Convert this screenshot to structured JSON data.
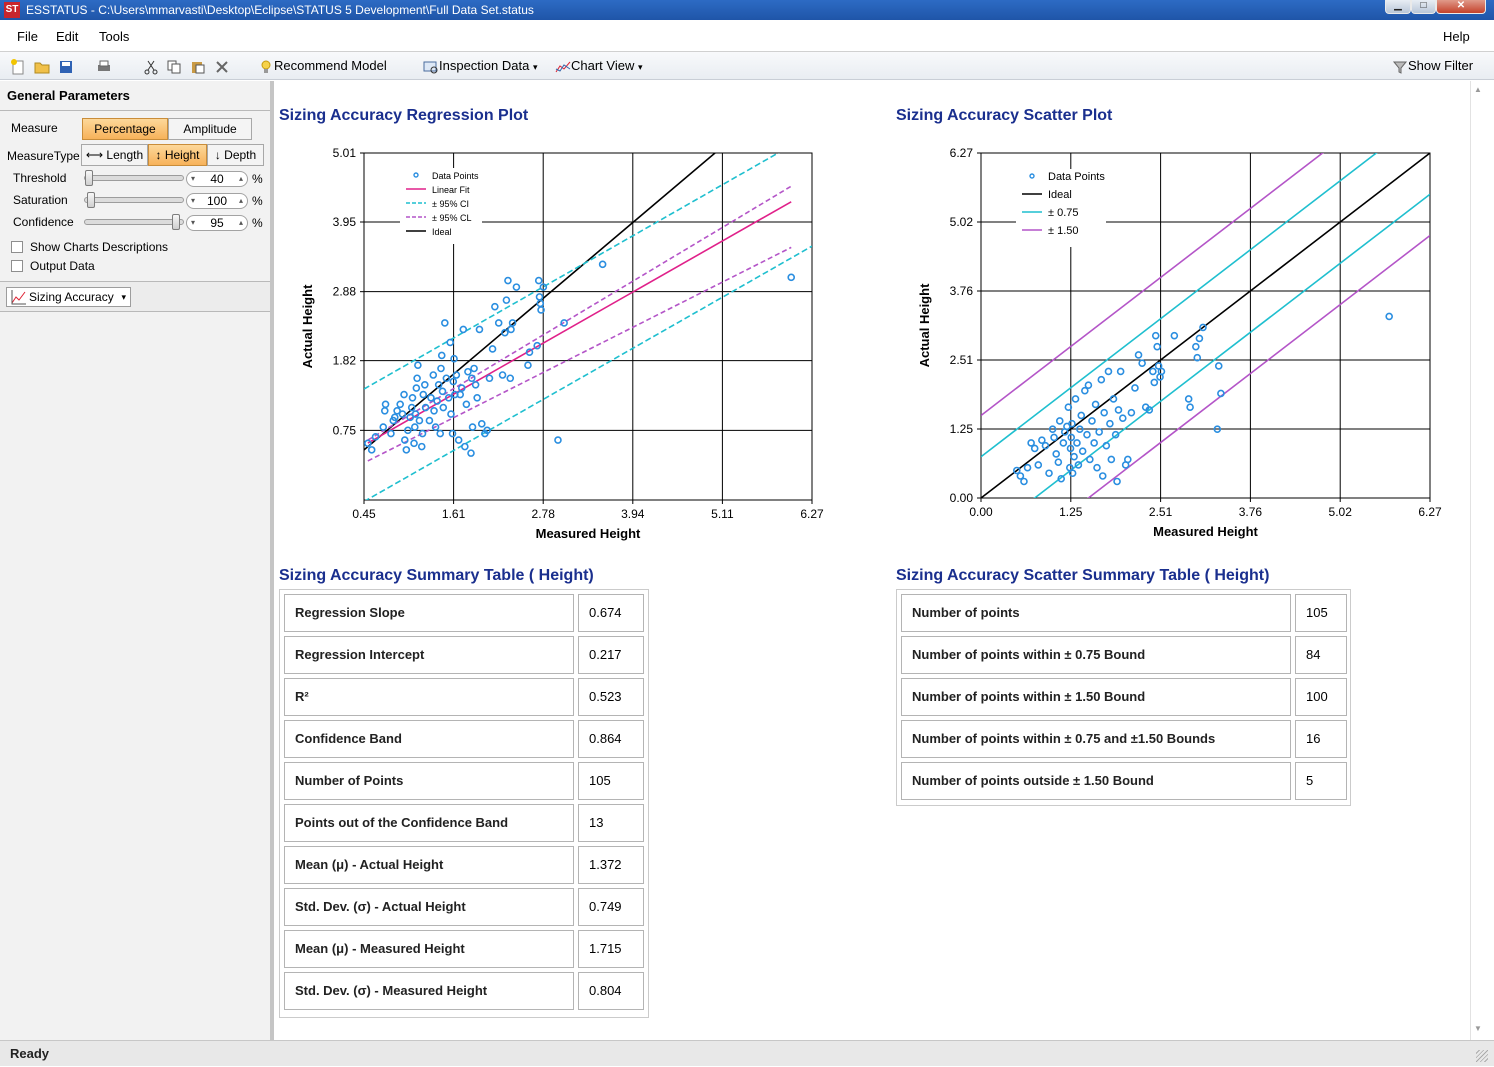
{
  "window": {
    "title": "ESSTATUS - C:\\Users\\mmarvasti\\Desktop\\Eclipse\\STATUS 5 Development\\Full Data Set.status",
    "icon_text": "ST"
  },
  "menu": {
    "file": "File",
    "edit": "Edit",
    "tools": "Tools",
    "help": "Help"
  },
  "toolbar": {
    "recommend_model": "Recommend Model",
    "inspection_data": "Inspection Data",
    "chart_view": "Chart View",
    "show_filter": "Show Filter"
  },
  "left_panel": {
    "header": "General Parameters",
    "measure_label": "Measure",
    "measure_options": [
      "Percentage",
      "Amplitude"
    ],
    "measure_selected": "Percentage",
    "measure_type_label": "MeasureType",
    "measure_type_options": [
      "Length",
      "Height",
      "Depth"
    ],
    "measure_type_selected": "Height",
    "threshold_label": "Threshold",
    "threshold_value": "40",
    "saturation_label": "Saturation",
    "saturation_value": "100",
    "confidence_label": "Confidence",
    "confidence_value": "95",
    "percent_unit": "%",
    "show_charts_descriptions": "Show Charts Descriptions",
    "output_data": "Output Data",
    "view_selector": "Sizing Accuracy"
  },
  "regression_plot": {
    "title": "Sizing Accuracy Regression Plot"
  },
  "scatter_plot": {
    "title": "Sizing Accuracy Scatter Plot"
  },
  "chart_data": [
    {
      "type": "scatter",
      "xlabel": "Measured  Height",
      "ylabel": "Actual Height",
      "xlim": [
        0.45,
        6.27
      ],
      "ylim": [
        -0.32,
        5.01
      ],
      "xticks": [
        "0.45",
        "1.61",
        "2.78",
        "3.94",
        "5.11",
        "6.27"
      ],
      "yticks": [
        "0.75",
        "1.82",
        "2.88",
        "3.95",
        "5.01"
      ],
      "ytick_values": [
        0.75,
        1.82,
        2.88,
        3.95,
        5.01
      ],
      "grid": true,
      "legend_position": "top-left",
      "legend": [
        "Data Points",
        "Linear Fit",
        "± 95% CI",
        "± 95% CL",
        "Ideal"
      ],
      "colors": {
        "points": "#2a8ee0",
        "fit": "#e0218a",
        "ci": "#1fbfcf",
        "cl": "#b455c8",
        "ideal": "#000000"
      },
      "lines": {
        "ideal": {
          "slope": 1.0,
          "intercept": 0.0
        },
        "linear_fit": {
          "slope": 0.674,
          "intercept": 0.217
        },
        "ci_offset": 0.864,
        "cl_lower": [
          [
            0.5,
            0.28
          ],
          [
            6.0,
            3.56
          ]
        ],
        "cl_upper": [
          [
            0.5,
            0.6
          ],
          [
            6.0,
            4.5
          ]
        ]
      },
      "series": [
        {
          "name": "Data Points",
          "values": [
            [
              0.5,
              0.55
            ],
            [
              0.55,
              0.45
            ],
            [
              0.6,
              0.65
            ],
            [
              0.7,
              0.8
            ],
            [
              0.72,
              1.05
            ],
            [
              0.73,
              1.15
            ],
            [
              0.8,
              0.7
            ],
            [
              0.83,
              0.9
            ],
            [
              0.85,
              0.95
            ],
            [
              0.88,
              1.05
            ],
            [
              0.92,
              1.15
            ],
            [
              0.95,
              1.0
            ],
            [
              0.97,
              1.3
            ],
            [
              0.98,
              0.6
            ],
            [
              1.0,
              0.45
            ],
            [
              1.02,
              0.75
            ],
            [
              1.05,
              0.95
            ],
            [
              1.07,
              1.1
            ],
            [
              1.08,
              1.25
            ],
            [
              1.1,
              0.55
            ],
            [
              1.11,
              0.8
            ],
            [
              1.12,
              1.0
            ],
            [
              1.13,
              1.4
            ],
            [
              1.14,
              1.55
            ],
            [
              1.15,
              1.75
            ],
            [
              1.17,
              0.9
            ],
            [
              1.2,
              0.5
            ],
            [
              1.21,
              0.7
            ],
            [
              1.22,
              1.3
            ],
            [
              1.24,
              1.45
            ],
            [
              1.25,
              1.1
            ],
            [
              1.3,
              0.9
            ],
            [
              1.32,
              1.25
            ],
            [
              1.35,
              1.6
            ],
            [
              1.36,
              1.05
            ],
            [
              1.38,
              0.8
            ],
            [
              1.4,
              1.2
            ],
            [
              1.42,
              1.45
            ],
            [
              1.44,
              0.7
            ],
            [
              1.45,
              1.7
            ],
            [
              1.46,
              1.9
            ],
            [
              1.47,
              1.35
            ],
            [
              1.48,
              1.1
            ],
            [
              1.5,
              2.4
            ],
            [
              1.52,
              1.55
            ],
            [
              1.55,
              1.25
            ],
            [
              1.57,
              2.1
            ],
            [
              1.58,
              1.0
            ],
            [
              1.6,
              0.7
            ],
            [
              1.61,
              1.5
            ],
            [
              1.62,
              1.85
            ],
            [
              1.63,
              1.3
            ],
            [
              1.65,
              1.6
            ],
            [
              1.68,
              0.6
            ],
            [
              1.7,
              1.3
            ],
            [
              1.72,
              1.4
            ],
            [
              1.74,
              2.3
            ],
            [
              1.76,
              0.5
            ],
            [
              1.78,
              1.15
            ],
            [
              1.8,
              1.65
            ],
            [
              1.84,
              0.4
            ],
            [
              1.85,
              1.55
            ],
            [
              1.86,
              0.8
            ],
            [
              1.88,
              1.7
            ],
            [
              1.9,
              1.45
            ],
            [
              1.92,
              1.25
            ],
            [
              1.95,
              2.3
            ],
            [
              1.98,
              0.85
            ],
            [
              2.02,
              0.7
            ],
            [
              2.05,
              0.75
            ],
            [
              2.08,
              1.55
            ],
            [
              2.12,
              2.0
            ],
            [
              2.15,
              2.65
            ],
            [
              2.2,
              2.4
            ],
            [
              2.25,
              1.6
            ],
            [
              2.28,
              2.25
            ],
            [
              2.3,
              2.75
            ],
            [
              2.32,
              3.05
            ],
            [
              2.35,
              1.55
            ],
            [
              2.36,
              2.3
            ],
            [
              2.38,
              2.4
            ],
            [
              2.43,
              2.95
            ],
            [
              2.58,
              1.75
            ],
            [
              2.6,
              1.95
            ],
            [
              2.7,
              2.05
            ],
            [
              2.72,
              3.05
            ],
            [
              2.73,
              2.8
            ],
            [
              2.74,
              2.7
            ],
            [
              2.75,
              2.6
            ],
            [
              2.78,
              2.95
            ],
            [
              2.97,
              0.6
            ],
            [
              3.05,
              2.4
            ],
            [
              3.55,
              3.3
            ],
            [
              6.0,
              3.1
            ]
          ]
        }
      ]
    },
    {
      "type": "scatter",
      "xlabel": "Measured  Height",
      "ylabel": "Actual Height",
      "xlim": [
        0.0,
        6.27
      ],
      "ylim": [
        0.0,
        6.27
      ],
      "xticks": [
        "0.00",
        "1.25",
        "2.51",
        "3.76",
        "5.02",
        "6.27"
      ],
      "yticks": [
        "0.00",
        "1.25",
        "2.51",
        "3.76",
        "5.02",
        "6.27"
      ],
      "grid": true,
      "legend_position": "top-left",
      "legend": [
        "Data Points",
        "Ideal",
        "± 0.75",
        "± 1.50"
      ],
      "colors": {
        "points": "#2a8ee0",
        "ideal": "#000000",
        "band1": "#1fbfcf",
        "band2": "#b455c8"
      },
      "bounds": [
        0.75,
        1.5
      ],
      "series": [
        {
          "name": "Data Points",
          "values": [
            [
              0.5,
              0.5
            ],
            [
              0.55,
              0.4
            ],
            [
              0.6,
              0.3
            ],
            [
              0.65,
              0.55
            ],
            [
              0.7,
              1.0
            ],
            [
              0.75,
              0.9
            ],
            [
              0.8,
              0.6
            ],
            [
              0.85,
              1.05
            ],
            [
              0.9,
              0.95
            ],
            [
              0.95,
              0.45
            ],
            [
              1.0,
              1.25
            ],
            [
              1.02,
              1.1
            ],
            [
              1.05,
              0.8
            ],
            [
              1.08,
              0.65
            ],
            [
              1.1,
              1.4
            ],
            [
              1.12,
              0.35
            ],
            [
              1.15,
              1.0
            ],
            [
              1.17,
              1.2
            ],
            [
              1.2,
              1.3
            ],
            [
              1.22,
              1.65
            ],
            [
              1.24,
              0.55
            ],
            [
              1.25,
              0.9
            ],
            [
              1.26,
              1.1
            ],
            [
              1.27,
              1.35
            ],
            [
              1.28,
              0.45
            ],
            [
              1.3,
              0.75
            ],
            [
              1.32,
              1.8
            ],
            [
              1.34,
              1.0
            ],
            [
              1.36,
              0.6
            ],
            [
              1.38,
              1.25
            ],
            [
              1.4,
              1.5
            ],
            [
              1.42,
              0.85
            ],
            [
              1.45,
              1.95
            ],
            [
              1.48,
              1.15
            ],
            [
              1.5,
              2.05
            ],
            [
              1.52,
              0.7
            ],
            [
              1.55,
              1.4
            ],
            [
              1.58,
              1.0
            ],
            [
              1.6,
              1.7
            ],
            [
              1.62,
              0.55
            ],
            [
              1.65,
              1.2
            ],
            [
              1.68,
              2.15
            ],
            [
              1.7,
              0.4
            ],
            [
              1.72,
              1.55
            ],
            [
              1.75,
              0.95
            ],
            [
              1.78,
              2.3
            ],
            [
              1.8,
              1.35
            ],
            [
              1.82,
              0.7
            ],
            [
              1.85,
              1.8
            ],
            [
              1.88,
              1.15
            ],
            [
              1.9,
              0.3
            ],
            [
              1.92,
              1.6
            ],
            [
              1.95,
              2.3
            ],
            [
              1.98,
              1.45
            ],
            [
              2.02,
              0.6
            ],
            [
              2.05,
              0.7
            ],
            [
              2.1,
              1.55
            ],
            [
              2.15,
              2.0
            ],
            [
              2.2,
              2.6
            ],
            [
              2.25,
              2.45
            ],
            [
              2.3,
              1.65
            ],
            [
              2.35,
              1.6
            ],
            [
              2.4,
              2.3
            ],
            [
              2.42,
              2.1
            ],
            [
              2.44,
              2.95
            ],
            [
              2.46,
              2.75
            ],
            [
              2.48,
              2.4
            ],
            [
              2.5,
              2.2
            ],
            [
              2.52,
              2.3
            ],
            [
              2.7,
              2.95
            ],
            [
              2.9,
              1.8
            ],
            [
              2.92,
              1.65
            ],
            [
              3.0,
              2.75
            ],
            [
              3.02,
              2.55
            ],
            [
              3.05,
              2.9
            ],
            [
              3.1,
              3.1
            ],
            [
              3.3,
              1.25
            ],
            [
              3.32,
              2.4
            ],
            [
              3.35,
              1.9
            ],
            [
              5.7,
              3.3
            ]
          ]
        }
      ]
    }
  ],
  "regression_table": {
    "title": "Sizing Accuracy Summary Table ( Height)",
    "rows": [
      {
        "label": "Regression Slope",
        "value": "0.674"
      },
      {
        "label": "Regression Intercept",
        "value": "0.217"
      },
      {
        "label": "R²",
        "value": "0.523"
      },
      {
        "label": "Confidence Band",
        "value": "0.864"
      },
      {
        "label": "Number of Points",
        "value": "105"
      },
      {
        "label": "Points out of the Confidence Band",
        "value": "13"
      },
      {
        "label": "Mean (μ) - Actual Height",
        "value": "1.372"
      },
      {
        "label": "Std. Dev. (σ) - Actual Height",
        "value": "0.749"
      },
      {
        "label": "Mean (μ) - Measured Height",
        "value": "1.715"
      },
      {
        "label": "Std. Dev. (σ) - Measured Height",
        "value": "0.804"
      }
    ]
  },
  "scatter_table": {
    "title": "Sizing Accuracy Scatter Summary Table ( Height)",
    "rows": [
      {
        "label": "Number of points",
        "value": "105"
      },
      {
        "label": "Number of points within ± 0.75 Bound",
        "value": "84"
      },
      {
        "label": "Number of points within ± 1.50 Bound",
        "value": "100"
      },
      {
        "label": "Number of points within ± 0.75 and ±1.50 Bounds",
        "value": "16"
      },
      {
        "label": "Number of points outside ± 1.50 Bound",
        "value": "5"
      }
    ]
  },
  "status": {
    "text": "Ready"
  }
}
